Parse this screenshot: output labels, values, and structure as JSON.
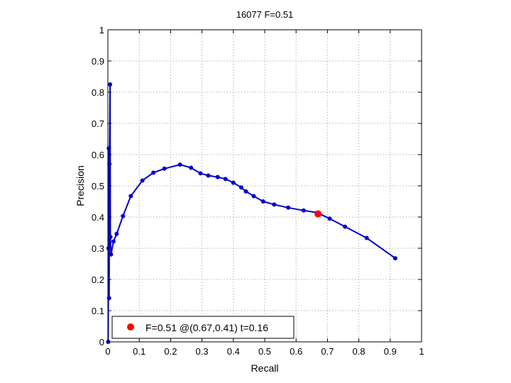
{
  "chart_data": {
    "type": "line",
    "title": "16077 F=0.51",
    "xlabel": "Recall",
    "ylabel": "Precision",
    "xlim": [
      0,
      1
    ],
    "ylim": [
      0,
      1
    ],
    "grid": true,
    "legend_position": "bottom-left",
    "x_ticks": [
      "0",
      "0.1",
      "0.2",
      "0.3",
      "0.4",
      "0.5",
      "0.6",
      "0.7",
      "0.8",
      "0.9",
      "1"
    ],
    "y_ticks": [
      "0",
      "0.1",
      "0.2",
      "0.3",
      "0.4",
      "0.5",
      "0.6",
      "0.7",
      "0.8",
      "0.9",
      "1"
    ],
    "series": [
      {
        "color": "#0000cc",
        "marker": "dot",
        "points": [
          [
            0.916,
            0.268
          ],
          [
            0.825,
            0.333
          ],
          [
            0.756,
            0.369
          ],
          [
            0.707,
            0.395
          ],
          [
            0.667,
            0.414
          ],
          [
            0.624,
            0.421
          ],
          [
            0.575,
            0.43
          ],
          [
            0.53,
            0.44
          ],
          [
            0.495,
            0.45
          ],
          [
            0.465,
            0.467
          ],
          [
            0.44,
            0.482
          ],
          [
            0.425,
            0.495
          ],
          [
            0.4,
            0.51
          ],
          [
            0.375,
            0.522
          ],
          [
            0.35,
            0.528
          ],
          [
            0.32,
            0.533
          ],
          [
            0.295,
            0.54
          ],
          [
            0.265,
            0.558
          ],
          [
            0.23,
            0.568
          ],
          [
            0.18,
            0.555
          ],
          [
            0.145,
            0.542
          ],
          [
            0.11,
            0.517
          ],
          [
            0.073,
            0.467
          ],
          [
            0.048,
            0.403
          ],
          [
            0.028,
            0.346
          ],
          [
            0.018,
            0.322
          ],
          [
            0.01,
            0.28
          ],
          [
            0.008,
            0.336
          ],
          [
            0.007,
            0.825
          ],
          [
            0.005,
            0.57
          ],
          [
            0.004,
            0.14
          ],
          [
            0.003,
            0.62
          ],
          [
            0.002,
            0.3
          ],
          [
            0.001,
            0.0
          ]
        ]
      }
    ],
    "highlight": {
      "x": 0.67,
      "y": 0.41,
      "color": "#ff0000"
    },
    "legend": {
      "label": "F=0.51 @(0.67,0.41) t=0.16",
      "color": "#ff0000"
    }
  }
}
